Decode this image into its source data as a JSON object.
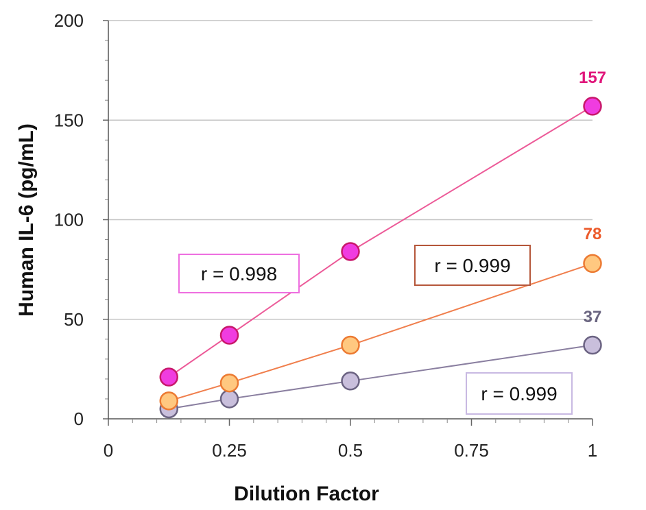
{
  "chart_data": {
    "type": "scatter",
    "xlabel": "Dilution Factor",
    "ylabel": "Human IL-6 (pg/mL)",
    "xlim": [
      0,
      1
    ],
    "ylim": [
      0,
      200
    ],
    "x_ticks": [
      "0",
      "0.25",
      "0.5",
      "0.75",
      "1"
    ],
    "y_ticks": [
      "0",
      "50",
      "100",
      "150",
      "200"
    ],
    "grid": "horizontal",
    "series": [
      {
        "x": [
          0.125,
          0.25,
          0.5,
          1
        ],
        "y": [
          21,
          42,
          84,
          157
        ],
        "fit_line": true,
        "end_label": "157",
        "r_label": "r = 0.998",
        "line_color": "#ec5a98",
        "fill_color": "#f03ce0",
        "stroke_color": "#c8186b",
        "label_color": "#e0157a",
        "box_color": "#ee6fe0"
      },
      {
        "x": [
          0.125,
          0.25,
          0.5,
          1
        ],
        "y": [
          9,
          18,
          37,
          78
        ],
        "fit_line": true,
        "end_label": "78",
        "r_label": "r = 0.999",
        "line_color": "#f07f4d",
        "fill_color": "#ffc880",
        "stroke_color": "#ec7a32",
        "label_color": "#ec5a2a",
        "box_color": "#b5563a"
      },
      {
        "x": [
          0.125,
          0.25,
          0.5,
          1
        ],
        "y": [
          5,
          10,
          19,
          37
        ],
        "fit_line": true,
        "end_label": "37",
        "r_label": "r = 0.999",
        "line_color": "#8a7fa0",
        "fill_color": "#c9bfdc",
        "stroke_color": "#6b6382",
        "label_color": "#6a6580",
        "box_color": "#c8b9e2"
      }
    ]
  }
}
